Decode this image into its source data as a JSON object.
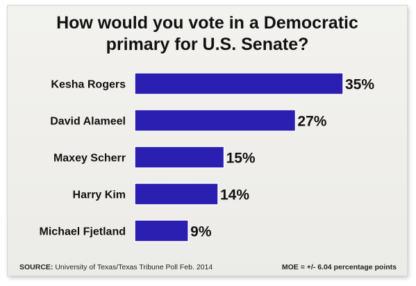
{
  "chart_data": {
    "type": "bar",
    "orientation": "horizontal",
    "title": "How would you vote in a Democratic primary for U.S. Senate?",
    "title_lines": [
      "How would you vote in a Democratic",
      "primary for U.S. Senate?"
    ],
    "categories": [
      "Kesha Rogers",
      "David Alameel",
      "Maxey Scherr",
      "Harry Kim",
      "Michael Fjetland"
    ],
    "values": [
      35,
      27,
      15,
      14,
      9
    ],
    "value_labels": [
      "35%",
      "27%",
      "15%",
      "14%",
      "9%"
    ],
    "unit": "%",
    "xlim": [
      0,
      35
    ],
    "grid": false,
    "legend": "none",
    "bar_color": "#2a1fb0",
    "source_label": "SOURCE:",
    "source_text": "University of Texas/Texas Tribune Poll Feb. 2014",
    "moe": "MOE = +/- 6.04 percentage points"
  }
}
